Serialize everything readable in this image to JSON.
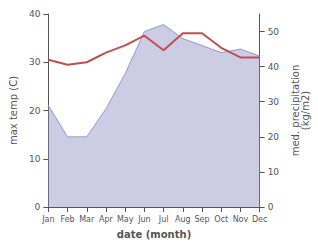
{
  "chart_data": {
    "type": "line",
    "categories": [
      "Jan",
      "Feb",
      "Mar",
      "Apr",
      "May",
      "Jun",
      "Jul",
      "Aug",
      "Sep",
      "Oct",
      "Nov",
      "Dec"
    ],
    "series": [
      {
        "type": "area",
        "color": "#9999cc",
        "axis": "y2",
        "values": [
          29,
          20,
          20,
          28,
          38,
          50,
          52,
          48,
          46,
          44,
          45,
          43
        ]
      },
      {
        "type": "line",
        "color": "#c0504d",
        "values": [
          30.5,
          29.5,
          30.0,
          32.0,
          33.5,
          35.5,
          32.5,
          36.0,
          36.0,
          33.0,
          31.0,
          31.0
        ]
      }
    ],
    "xlabel": "date (month)",
    "ylabel": "max temp (C)",
    "y2label": "med. precipitation\n(kg/m2)",
    "ylim": [
      0,
      40
    ],
    "yticks": [
      0,
      10,
      20,
      30,
      40
    ],
    "y2lim": [
      0,
      55
    ],
    "y2ticks": [
      0,
      10,
      20,
      30,
      40,
      50
    ],
    "grid": false
  }
}
